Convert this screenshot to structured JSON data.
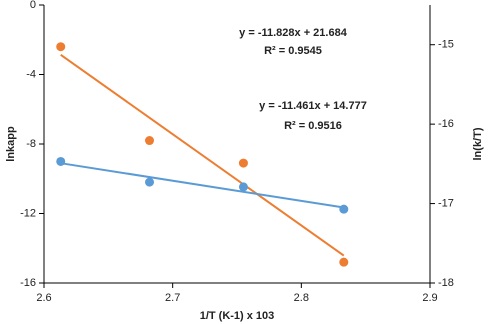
{
  "chart_data": {
    "type": "scatter",
    "x_label": "1/T (K-1) x 103",
    "y_label": "lnkapp",
    "y2_label": "ln(k/T)",
    "xlim": [
      2.6,
      2.9
    ],
    "xticks": [
      2.6,
      2.7,
      2.8,
      2.9
    ],
    "ylim": [
      -16,
      0
    ],
    "yticks": [
      -16,
      -12,
      -8,
      -4,
      0
    ],
    "y2lim": [
      -18,
      -14.5
    ],
    "y2ticks": [
      -18,
      -17,
      -16,
      -15
    ],
    "trendline": true,
    "series": [
      {
        "color": "#ed7d31",
        "x": [
          2.613,
          2.682,
          2.755,
          2.833
        ],
        "values": [
          -2.4,
          -7.8,
          -9.1,
          -14.8
        ]
      },
      {
        "color": "#5b9bd5",
        "axis": "y2",
        "x": [
          2.613,
          2.682,
          2.755,
          2.833
        ],
        "values": [
          -16.47,
          -16.73,
          -16.79,
          -17.07
        ]
      }
    ],
    "annotations": [
      "y = -11.828x + 21.684",
      "R² = 0.9545",
      "y = -11.461x + 14.777",
      "R² = 0.9516"
    ]
  }
}
